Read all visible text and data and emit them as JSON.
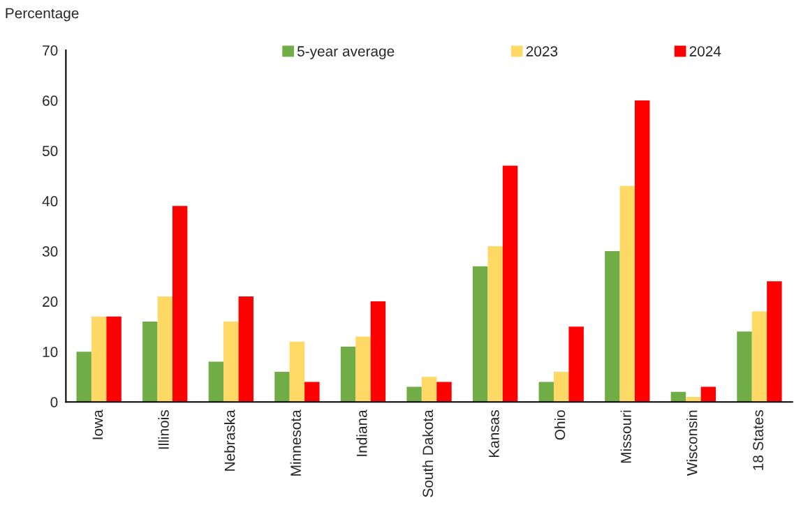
{
  "chart_data": {
    "type": "bar",
    "ylabel": "Percentage",
    "categories": [
      "Iowa",
      "Illinois",
      "Nebraska",
      "Minnesota",
      "Indiana",
      "South Dakota",
      "Kansas",
      "Ohio",
      "Missouri",
      "Wisconsin",
      "18 States"
    ],
    "series": [
      {
        "name": "5-year average",
        "color": "#70ad47",
        "values": [
          10,
          16,
          8,
          6,
          11,
          3,
          27,
          4,
          30,
          2,
          14
        ]
      },
      {
        "name": "2023",
        "color": "#ffd966",
        "values": [
          17,
          21,
          16,
          12,
          13,
          5,
          31,
          6,
          43,
          1,
          18
        ]
      },
      {
        "name": "2024",
        "color": "#ff0000",
        "values": [
          17,
          39,
          21,
          4,
          20,
          4,
          47,
          15,
          60,
          3,
          24
        ]
      }
    ],
    "ylim": [
      0,
      70
    ],
    "yticks": [
      0,
      10,
      20,
      30,
      40,
      50,
      60,
      70
    ],
    "grid": false,
    "legend": "top"
  }
}
